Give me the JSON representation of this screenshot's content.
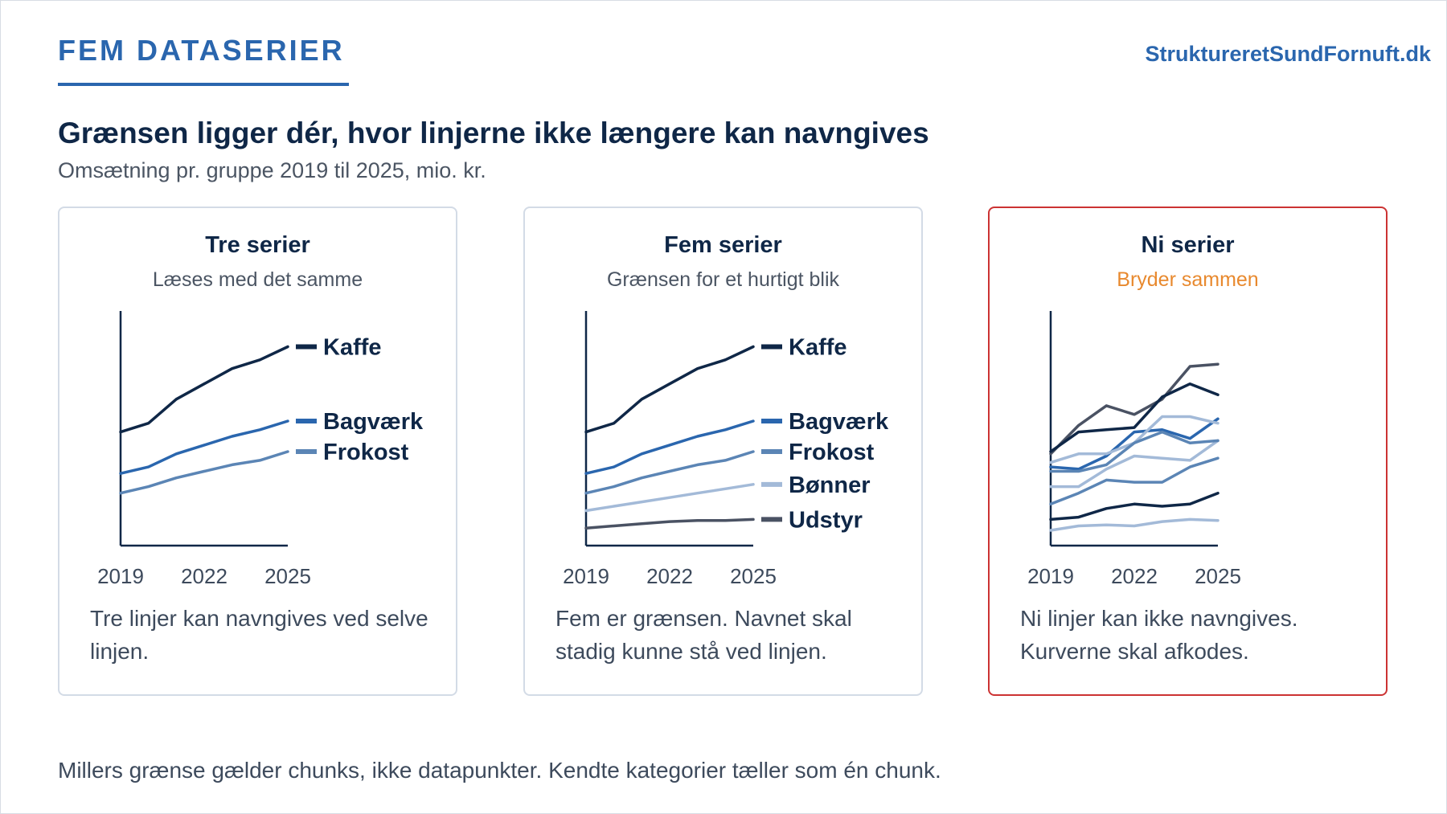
{
  "header": {
    "kicker": "FEM DATASERIER",
    "brand": "StruktureretSundFornuft.dk",
    "headline": "Grænsen ligger dér, hvor linjerne ikke længere kan navngives",
    "subhead": "Omsætning pr. gruppe 2019 til 2025, mio. kr."
  },
  "colors": {
    "navy": "#0f2747",
    "blue": "#2a66ae",
    "steel": "#5b85b5",
    "light": "#a3bad8",
    "slate": "#4a5263",
    "alert_border": "#cc3333",
    "warning_text": "#e8892e"
  },
  "cards": [
    {
      "title": "Tre serier",
      "subtitle": "Læses med det samme",
      "note": "Tre linjer kan navngives ved selve linjen."
    },
    {
      "title": "Fem serier",
      "subtitle": "Grænsen for et hurtigt blik",
      "note": "Fem er grænsen. Navnet skal stadig kunne stå ved linjen."
    },
    {
      "title": "Ni serier",
      "subtitle": "Bryder sammen",
      "note": "Ni linjer kan ikke navngives. Kurverne skal afkodes."
    }
  ],
  "footer": {
    "note": "Millers grænse gælder chunks, ikke datapunkter. Kendte kategorier tæller som én chunk."
  },
  "chart_data": [
    {
      "type": "line",
      "title": "Tre serier",
      "x": [
        2019,
        2020,
        2021,
        2022,
        2023,
        2024,
        2025
      ],
      "xticks": [
        "2019",
        "2022",
        "2025"
      ],
      "ylim": [
        0,
        100
      ],
      "series": [
        {
          "name": "Kaffe",
          "color": "#0f2747",
          "values": [
            52,
            56,
            67,
            74,
            81,
            85,
            91
          ]
        },
        {
          "name": "Bagværk",
          "color": "#2a66ae",
          "values": [
            33,
            36,
            42,
            46,
            50,
            53,
            57
          ]
        },
        {
          "name": "Frokost",
          "color": "#5b85b5",
          "values": [
            24,
            27,
            31,
            34,
            37,
            39,
            43
          ]
        }
      ]
    },
    {
      "type": "line",
      "title": "Fem serier",
      "x": [
        2019,
        2020,
        2021,
        2022,
        2023,
        2024,
        2025
      ],
      "xticks": [
        "2019",
        "2022",
        "2025"
      ],
      "ylim": [
        0,
        100
      ],
      "series": [
        {
          "name": "Kaffe",
          "color": "#0f2747",
          "values": [
            52,
            56,
            67,
            74,
            81,
            85,
            91
          ]
        },
        {
          "name": "Bagværk",
          "color": "#2a66ae",
          "values": [
            33,
            36,
            42,
            46,
            50,
            53,
            57
          ]
        },
        {
          "name": "Frokost",
          "color": "#5b85b5",
          "values": [
            24,
            27,
            31,
            34,
            37,
            39,
            43
          ]
        },
        {
          "name": "Bønner",
          "color": "#a3bad8",
          "values": [
            16,
            18,
            20,
            22,
            24,
            26,
            28
          ]
        },
        {
          "name": "Udstyr",
          "color": "#4a5263",
          "values": [
            8,
            9,
            10,
            11,
            11.5,
            11.5,
            12
          ]
        }
      ]
    },
    {
      "type": "line",
      "title": "Ni serier",
      "x": [
        2019,
        2020,
        2021,
        2022,
        2023,
        2024,
        2025
      ],
      "xticks": [
        "2019",
        "2022",
        "2025"
      ],
      "ylim": [
        0,
        100
      ],
      "series": [
        {
          "color": "#4a5263",
          "values": [
            42,
            55,
            64,
            60,
            67,
            82,
            83
          ]
        },
        {
          "color": "#0f2747",
          "values": [
            43,
            52,
            53,
            54,
            68,
            74,
            69
          ]
        },
        {
          "color": "#2a66ae",
          "values": [
            36,
            35,
            41,
            52,
            53,
            49,
            58
          ]
        },
        {
          "color": "#a3bad8",
          "values": [
            38,
            42,
            42,
            47,
            59,
            59,
            56
          ]
        },
        {
          "color": "#a3bad8",
          "values": [
            27,
            27,
            35,
            41,
            40,
            39,
            48
          ]
        },
        {
          "color": "#5b85b5",
          "values": [
            34,
            34,
            37,
            47,
            52,
            47,
            48
          ]
        },
        {
          "color": "#5b85b5",
          "values": [
            19,
            24,
            30,
            29,
            29,
            36,
            40
          ]
        },
        {
          "color": "#0f2747",
          "values": [
            12,
            13,
            17,
            19,
            18,
            19,
            24
          ]
        },
        {
          "color": "#a3bad8",
          "values": [
            7,
            9,
            9.5,
            9,
            11,
            12,
            11.5
          ]
        }
      ]
    }
  ]
}
